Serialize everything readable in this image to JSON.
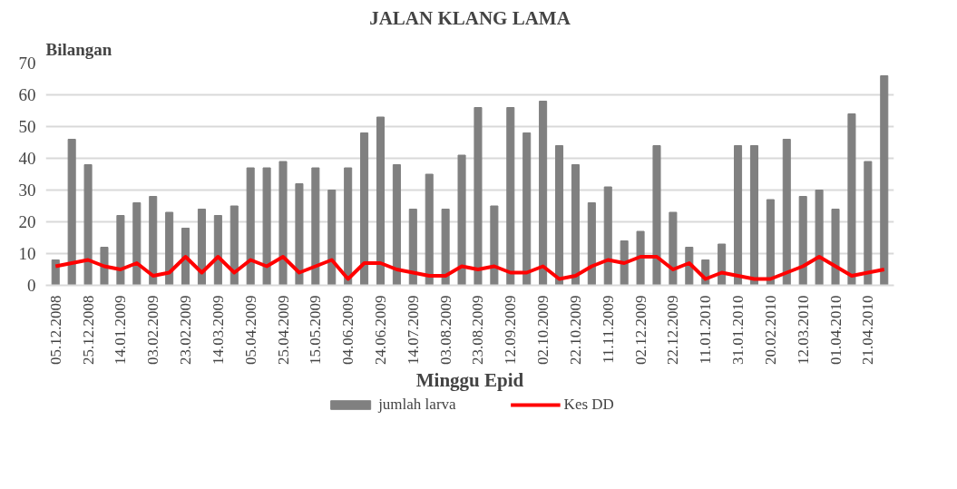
{
  "chart_data": {
    "type": "bar",
    "title": "JALAN KLANG LAMA",
    "ylabel": "Bilangan",
    "xlabel": "Minggu Epid",
    "categories": [
      "05.12.2008",
      null,
      "25.12.2008",
      null,
      "14.01.2009",
      null,
      "03.02.2009",
      null,
      "23.02.2009",
      null,
      "14.03.2009",
      null,
      "05.04.2009",
      null,
      "25.04.2009",
      null,
      "15.05.2009",
      null,
      "04.06.2009",
      null,
      "24.06.2009",
      null,
      "14.07.2009",
      null,
      "03.08.2009",
      null,
      "23.08.2009",
      null,
      "12.09.2009",
      null,
      "02.10.2009",
      null,
      "22.10.2009",
      null,
      "11.11.2009",
      null,
      "02.12.2009",
      null,
      "22.12.2009",
      null,
      "11.01.2010",
      null,
      "31.01.2010",
      null,
      "20.02.2010",
      null,
      "12.03.2010",
      null,
      "01.04.2010",
      null,
      "21.04.2010",
      null
    ],
    "series": [
      {
        "name": "jumlah larva",
        "color": "#808080",
        "values": [
          8,
          46,
          38,
          12,
          22,
          26,
          28,
          23,
          18,
          24,
          22,
          25,
          37,
          37,
          39,
          32,
          37,
          30,
          37,
          48,
          53,
          38,
          24,
          35,
          24,
          41,
          56,
          25,
          56,
          48,
          58,
          44,
          38,
          26,
          31,
          14,
          17,
          44,
          23,
          12,
          8,
          13,
          44,
          44,
          27,
          46,
          28,
          30,
          24,
          54,
          39,
          66
        ]
      },
      {
        "name": "Kes DD",
        "type": "line",
        "color": "#ff0000",
        "values": [
          6,
          7,
          8,
          6,
          5,
          7,
          3,
          4,
          9,
          4,
          9,
          4,
          8,
          6,
          9,
          4,
          6,
          8,
          2,
          7,
          7,
          5,
          4,
          3,
          3,
          6,
          5,
          6,
          4,
          4,
          6,
          2,
          3,
          6,
          8,
          7,
          9,
          9,
          5,
          7,
          2,
          4,
          3,
          2,
          2,
          4,
          6,
          9,
          6,
          3,
          4,
          5
        ]
      }
    ],
    "ylim": [
      0,
      70
    ],
    "yticks": [
      0,
      10,
      20,
      30,
      40,
      50,
      60,
      70
    ],
    "grid": "y",
    "legend": "bottom",
    "marker": "none"
  }
}
